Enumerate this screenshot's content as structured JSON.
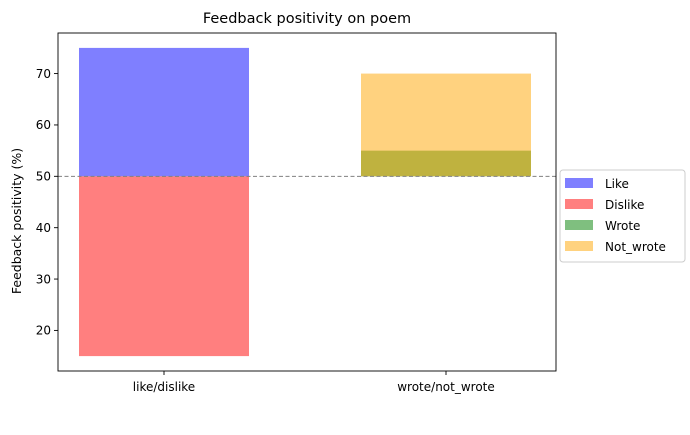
{
  "chart_data": {
    "type": "bar",
    "title": "Feedback positivity on poem",
    "xlabel": "",
    "ylabel": "Feedback positivity (%)",
    "categories": [
      "like/dislike",
      "wrote/not_wrote"
    ],
    "baseline": 50,
    "ylim": [
      12.1,
      77.9
    ],
    "yticks": [
      20,
      30,
      40,
      50,
      60,
      70
    ],
    "series": [
      {
        "name": "Like",
        "category": "like/dislike",
        "from": 50,
        "to": 75,
        "color": "#0000ff",
        "opacity": 0.5
      },
      {
        "name": "Dislike",
        "category": "like/dislike",
        "from": 15,
        "to": 50,
        "color": "#ff0000",
        "opacity": 0.5
      },
      {
        "name": "Wrote",
        "category": "wrote/not_wrote",
        "from": 50,
        "to": 55,
        "color": "#008000",
        "opacity": 0.5
      },
      {
        "name": "Not_wrote",
        "category": "wrote/not_wrote",
        "from": 50,
        "to": 70,
        "color": "#ffa500",
        "opacity": 0.5
      }
    ],
    "grid": false,
    "legend_position": "right"
  }
}
